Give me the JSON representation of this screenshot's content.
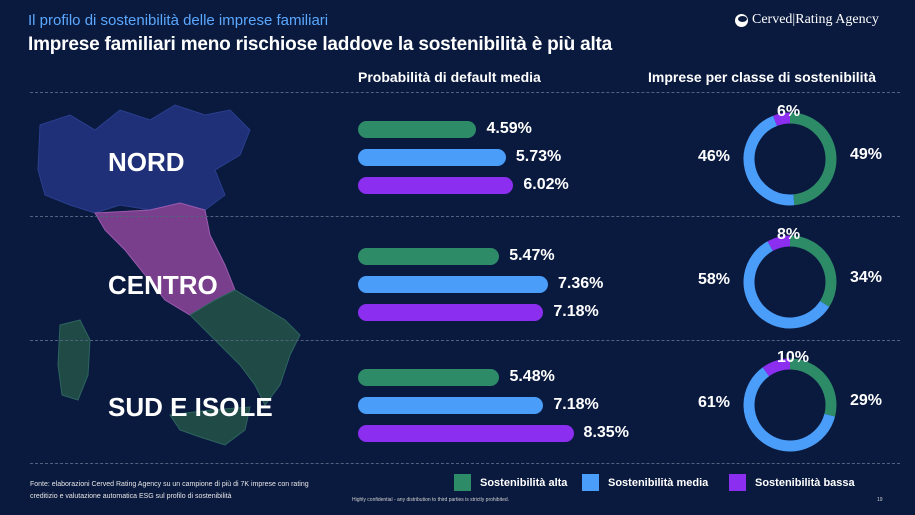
{
  "header": {
    "supertitle": "Il profilo di sostenibilità delle imprese familiari",
    "title": "Imprese familiari meno rischiose laddove la sostenibilità è più alta",
    "logo_text": "Cerved|Rating Agency"
  },
  "columns": {
    "pd_title": "Probabilità di default media",
    "class_title": "Imprese per classe di sostenibilità"
  },
  "colors": {
    "alta": "#2e8b68",
    "media": "#4b9dfa",
    "bassa": "#8b2ef0",
    "background": "#0a1a3e",
    "map_centro": "#7a3f8c",
    "map_nord": "#1f2f78",
    "map_sud": "#1f4a46"
  },
  "legend": [
    {
      "label": "Sostenibilità alta",
      "color": "#2e8b68"
    },
    {
      "label": "Sostenibilità media",
      "color": "#4b9dfa"
    },
    {
      "label": "Sostenibilità bassa",
      "color": "#8b2ef0"
    }
  ],
  "chart_data": [
    {
      "type": "bar",
      "title": "Probabilità di default media",
      "categories": [
        "NORD",
        "CENTRO",
        "SUD E ISOLE"
      ],
      "series": [
        {
          "name": "Sostenibilità alta",
          "values": [
            4.59,
            5.47,
            5.48
          ],
          "labels": [
            "4.59%",
            "5.47%",
            "5.48%"
          ]
        },
        {
          "name": "Sostenibilità media",
          "values": [
            5.73,
            7.36,
            7.18
          ],
          "labels": [
            "5.73%",
            "7.36%",
            "7.18%"
          ]
        },
        {
          "name": "Sostenibilità bassa",
          "values": [
            6.02,
            7.18,
            8.35
          ],
          "labels": [
            "6.02%",
            "7.18%",
            "8.35%"
          ]
        }
      ],
      "orientation": "horizontal"
    },
    {
      "type": "pie",
      "title": "Imprese per classe di sostenibilità",
      "style": "donut",
      "charts": [
        {
          "region": "NORD",
          "slices": [
            {
              "name": "Sostenibilità alta",
              "value": 49,
              "label": "49%"
            },
            {
              "name": "Sostenibilità media",
              "value": 46,
              "label": "46%"
            },
            {
              "name": "Sostenibilità bassa",
              "value": 6,
              "label": "6%"
            }
          ]
        },
        {
          "region": "CENTRO",
          "slices": [
            {
              "name": "Sostenibilità alta",
              "value": 34,
              "label": "34%"
            },
            {
              "name": "Sostenibilità media",
              "value": 58,
              "label": "58%"
            },
            {
              "name": "Sostenibilità bassa",
              "value": 8,
              "label": "8%"
            }
          ]
        },
        {
          "region": "SUD E ISOLE",
          "slices": [
            {
              "name": "Sostenibilità alta",
              "value": 29,
              "label": "29%"
            },
            {
              "name": "Sostenibilità media",
              "value": 61,
              "label": "61%"
            },
            {
              "name": "Sostenibilità bassa",
              "value": 10,
              "label": "10%"
            }
          ]
        }
      ]
    }
  ],
  "footer": {
    "source_line1": "Fonte: elaborazioni Cerved Rating Agency su un campione di più di 7K imprese con rating",
    "source_line2": "creditizio e valutazione automatica ESG sul profilo di sostenibilità",
    "confidential": "Highly confidential - any distribution to third parties is strictly prohibited.",
    "page_number": "19"
  }
}
